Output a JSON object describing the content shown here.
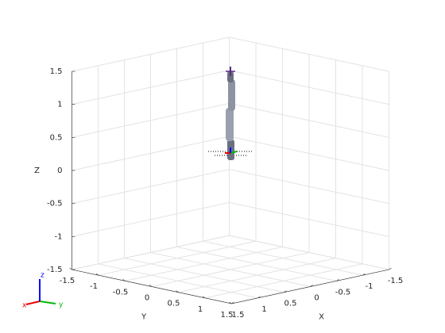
{
  "chart_data": {
    "type": "robot-3d",
    "xlabel": "X",
    "ylabel": "Y",
    "zlabel": "Z",
    "xlim": [
      -1.5,
      1.5
    ],
    "ylim": [
      -1.5,
      1.5
    ],
    "zlim": [
      -1.5,
      1.5
    ],
    "xticks": [
      -1.5,
      -1,
      -0.5,
      0,
      0.5,
      1,
      1.5
    ],
    "yticks": [
      -1.5,
      -1,
      -0.5,
      0,
      0.5,
      1,
      1.5
    ],
    "zticks": [
      -1.5,
      -1,
      -0.5,
      0,
      0.5,
      1,
      1.5
    ],
    "grid": true,
    "triad_labels": [
      "x",
      "y",
      "z"
    ]
  }
}
